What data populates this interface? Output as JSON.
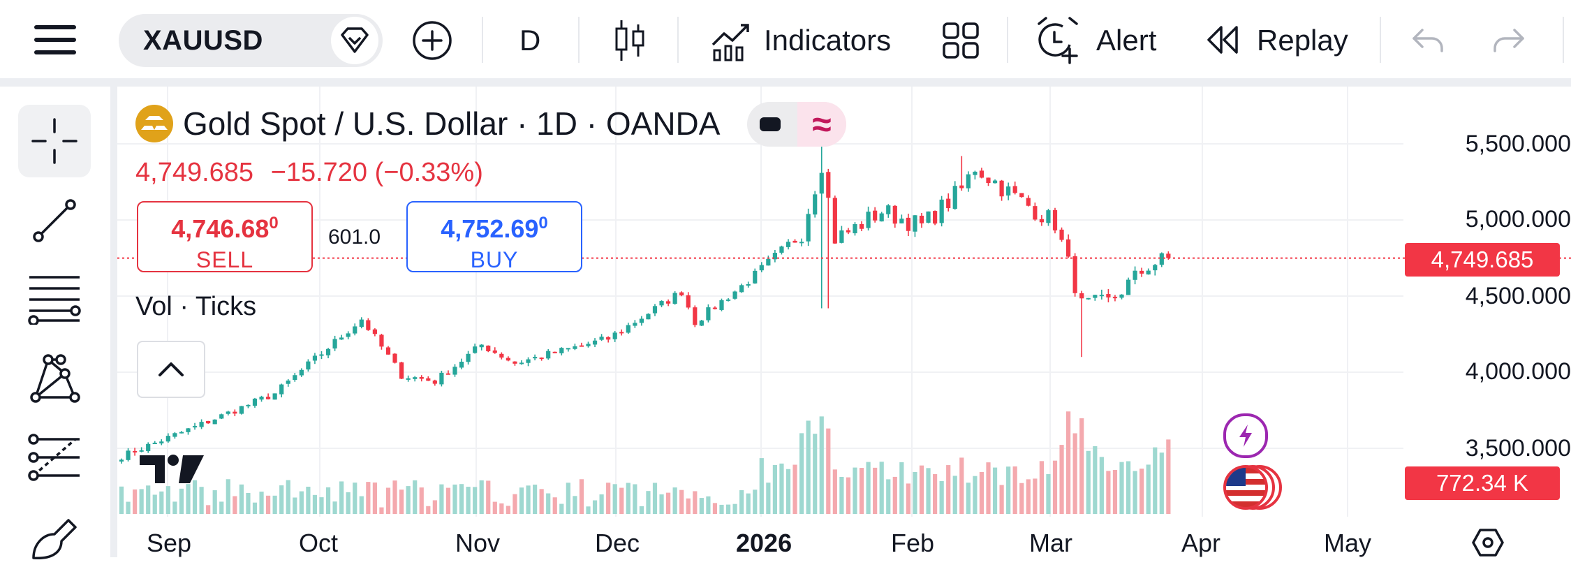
{
  "toolbar": {
    "symbol": "XAUUSD",
    "interval": "D",
    "indicators_label": "Indicators",
    "alert_label": "Alert",
    "replay_label": "Replay"
  },
  "legend": {
    "title": "Gold Spot / U.S. Dollar · 1D · OANDA",
    "last_price": "4,749.685",
    "change": "−15.720",
    "change_pct": "(−0.33%)",
    "sell_price_main": "4,746.68",
    "sell_price_sup": "0",
    "sell_label": "SELL",
    "spread": "601.0",
    "buy_price_main": "4,752.69",
    "buy_price_sup": "0",
    "buy_label": "BUY",
    "volume_label": "Vol · Ticks"
  },
  "price_axis": {
    "ticks": [
      "5,500.000",
      "5,000.000",
      "4,500.000",
      "4,000.000",
      "3,500.000"
    ],
    "current_price_tag": "4,749.685",
    "volume_tag": "772.34 K"
  },
  "time_axis": {
    "labels": [
      "Sep",
      "Oct",
      "Nov",
      "Dec",
      "2026",
      "Feb",
      "Mar",
      "Apr",
      "May"
    ]
  },
  "colors": {
    "up": "#26a69a",
    "down": "#f23645",
    "sell": "#e53340",
    "buy": "#2962ff",
    "accent_purple": "#9c27b0"
  },
  "chart_data": {
    "type": "candlestick",
    "title": "Gold Spot / U.S. Dollar · 1D · OANDA",
    "x_range": [
      "2025-08-29",
      "2026-04-10"
    ],
    "ylim": [
      3300,
      5700
    ],
    "y_ticks": [
      5500,
      5000,
      4500,
      4000,
      3500
    ],
    "last_price": 4749.685,
    "anchors": {
      "dates": [
        "Aug 29",
        "Sep 15",
        "Oct 1",
        "Oct 20",
        "Oct 28",
        "Nov 4",
        "Nov 13",
        "Nov 20",
        "Dec 10",
        "Dec 26",
        "Dec 31",
        "Jan 13",
        "Jan 23",
        "Jan 28",
        "Jan 30",
        "Feb 3",
        "Feb 10",
        "Feb 18",
        "Feb 26",
        "Mar 2",
        "Mar 10",
        "Mar 18",
        "Mar 24",
        "Mar 30",
        "Apr 7",
        "Apr 10"
      ],
      "close": [
        3448,
        3640,
        3860,
        4350,
        3980,
        3940,
        4180,
        4060,
        4220,
        4530,
        4330,
        4600,
        4920,
        5380,
        4880,
        4920,
        5060,
        4960,
        5200,
        5350,
        5150,
        4980,
        4440,
        4460,
        4700,
        4749.685
      ]
    },
    "volume_range_k": [
      150,
      1050
    ],
    "last_volume_k": 772.34
  }
}
